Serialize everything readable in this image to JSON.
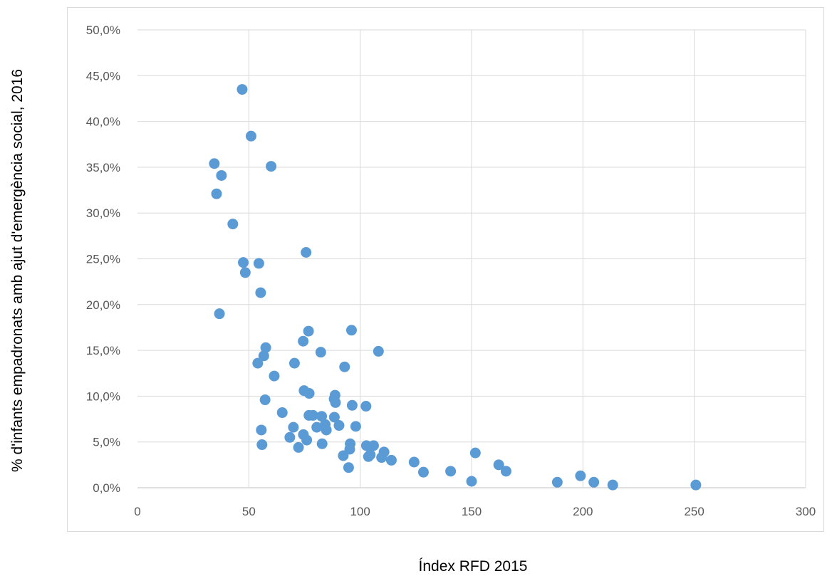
{
  "chart_data": {
    "type": "scatter",
    "xlabel": "Índex RFD 2015",
    "ylabel": "% d'infants empadronats amb ajut d'emergència social, 2016",
    "xlim": [
      0,
      300
    ],
    "ylim": [
      0,
      0.5
    ],
    "x_ticks": [
      "0",
      "50",
      "100",
      "150",
      "200",
      "250",
      "300"
    ],
    "y_ticks": [
      "0,0%",
      "5,0%",
      "10,0%",
      "15,0%",
      "20,0%",
      "25,0%",
      "30,0%",
      "35,0%",
      "40,0%",
      "45,0%",
      "50,0%"
    ],
    "grid": true,
    "marker_color": "#5b9bd5",
    "points": [
      [
        47.0,
        0.435
      ],
      [
        51.0,
        0.384
      ],
      [
        34.5,
        0.354
      ],
      [
        37.7,
        0.341
      ],
      [
        60.0,
        0.351
      ],
      [
        35.5,
        0.321
      ],
      [
        42.8,
        0.288
      ],
      [
        75.7,
        0.257
      ],
      [
        47.5,
        0.246
      ],
      [
        54.5,
        0.245
      ],
      [
        48.4,
        0.235
      ],
      [
        55.3,
        0.213
      ],
      [
        36.8,
        0.19
      ],
      [
        76.8,
        0.171
      ],
      [
        96.1,
        0.172
      ],
      [
        74.4,
        0.16
      ],
      [
        57.6,
        0.153
      ],
      [
        82.3,
        0.148
      ],
      [
        108.2,
        0.149
      ],
      [
        56.7,
        0.144
      ],
      [
        54.0,
        0.136
      ],
      [
        70.5,
        0.136
      ],
      [
        93.0,
        0.132
      ],
      [
        61.4,
        0.122
      ],
      [
        74.8,
        0.106
      ],
      [
        77.1,
        0.103
      ],
      [
        88.7,
        0.101
      ],
      [
        88.3,
        0.097
      ],
      [
        57.3,
        0.096
      ],
      [
        88.9,
        0.093
      ],
      [
        96.4,
        0.09
      ],
      [
        102.6,
        0.089
      ],
      [
        65.0,
        0.082
      ],
      [
        77.0,
        0.079
      ],
      [
        78.8,
        0.079
      ],
      [
        82.7,
        0.078
      ],
      [
        88.4,
        0.077
      ],
      [
        84.3,
        0.069
      ],
      [
        90.5,
        0.068
      ],
      [
        98.0,
        0.067
      ],
      [
        70.0,
        0.066
      ],
      [
        80.5,
        0.066
      ],
      [
        84.8,
        0.063
      ],
      [
        55.6,
        0.063
      ],
      [
        74.5,
        0.058
      ],
      [
        68.4,
        0.055
      ],
      [
        76.0,
        0.052
      ],
      [
        95.5,
        0.048
      ],
      [
        82.9,
        0.048
      ],
      [
        55.9,
        0.047
      ],
      [
        102.8,
        0.046
      ],
      [
        106.0,
        0.046
      ],
      [
        72.3,
        0.044
      ],
      [
        95.3,
        0.042
      ],
      [
        110.7,
        0.039
      ],
      [
        151.7,
        0.038
      ],
      [
        104.5,
        0.036
      ],
      [
        92.4,
        0.035
      ],
      [
        103.7,
        0.034
      ],
      [
        109.6,
        0.033
      ],
      [
        114.0,
        0.03
      ],
      [
        124.2,
        0.028
      ],
      [
        162.2,
        0.025
      ],
      [
        94.8,
        0.022
      ],
      [
        165.5,
        0.018
      ],
      [
        128.4,
        0.017
      ],
      [
        140.6,
        0.018
      ],
      [
        198.9,
        0.013
      ],
      [
        150.0,
        0.007
      ],
      [
        188.5,
        0.006
      ],
      [
        204.9,
        0.006
      ],
      [
        213.4,
        0.003
      ],
      [
        250.7,
        0.003
      ]
    ]
  }
}
